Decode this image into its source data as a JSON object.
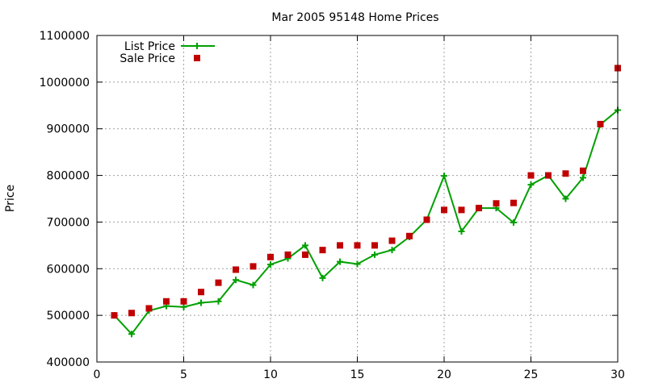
{
  "chart_data": {
    "type": "line",
    "title": "Mar 2005 95148 Home Prices",
    "xlabel": "",
    "ylabel": "Price",
    "xlim": [
      0,
      30
    ],
    "ylim": [
      400000,
      1100000
    ],
    "xticks": [
      0,
      5,
      10,
      15,
      20,
      25,
      30
    ],
    "yticks": [
      400000,
      500000,
      600000,
      700000,
      800000,
      900000,
      1000000,
      1100000
    ],
    "grid": true,
    "legend_position": "top-left",
    "x": [
      1,
      2,
      3,
      4,
      5,
      6,
      7,
      8,
      9,
      10,
      11,
      12,
      13,
      14,
      15,
      16,
      17,
      18,
      19,
      20,
      21,
      22,
      23,
      24,
      25,
      26,
      27,
      28,
      29,
      30
    ],
    "series": [
      {
        "name": "List Price",
        "style": "line-with-plus-markers",
        "color": "#00a000",
        "values": [
          500000,
          460000,
          510000,
          520000,
          518000,
          527000,
          530000,
          576000,
          565000,
          609000,
          622000,
          650000,
          580000,
          615000,
          610000,
          630000,
          640000,
          668000,
          705000,
          799000,
          680000,
          730000,
          730000,
          699000,
          780000,
          800000,
          750000,
          795000,
          909000,
          940000
        ]
      },
      {
        "name": "Sale Price",
        "style": "square-markers",
        "color": "#c00000",
        "values": [
          500000,
          505000,
          515000,
          530000,
          530000,
          550000,
          570000,
          598000,
          605000,
          625000,
          630000,
          630000,
          640000,
          650000,
          650000,
          650000,
          660000,
          670000,
          705000,
          726000,
          726000,
          730000,
          740000,
          741000,
          800000,
          800000,
          804000,
          810000,
          910000,
          1030000
        ]
      }
    ]
  }
}
